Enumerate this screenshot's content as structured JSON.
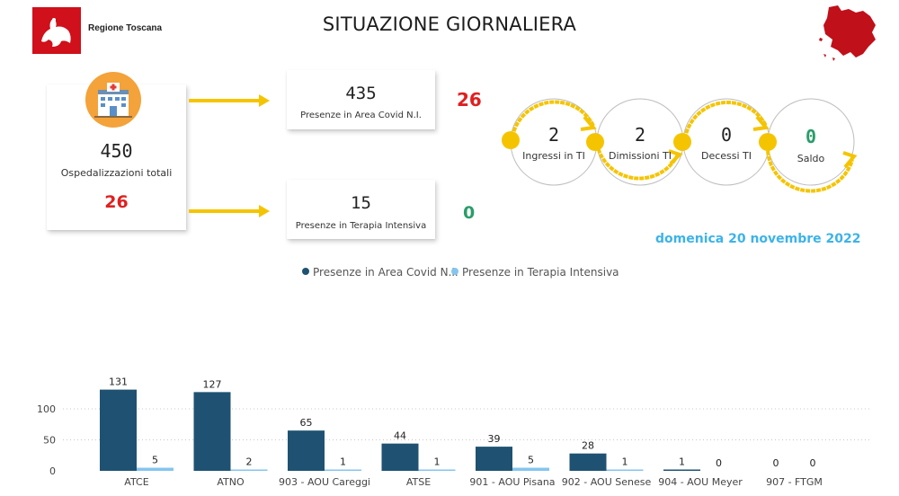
{
  "header": {
    "region_name": "Regione Toscana",
    "title": "SITUAZIONE GIORNALIERA"
  },
  "colors": {
    "brand_red": "#d0101a",
    "arrow_yellow": "#f5c400",
    "covid_bar": "#1f5272",
    "ti_bar": "#84c5ef",
    "delta_up": "#e02020",
    "delta_zero": "#2a9d6a",
    "date_blue": "#3db3e8"
  },
  "kpi": {
    "total": {
      "value": "450",
      "label": "Ospedalizzazioni totali",
      "delta": "26"
    },
    "covid": {
      "value": "435",
      "label": "Presenze in Area Covid N.I.",
      "delta": "26"
    },
    "ti": {
      "value": "15",
      "label": "Presenze in Terapia Intensiva",
      "delta": "0"
    }
  },
  "flow": [
    {
      "value": "2",
      "label": "Ingressi in TI"
    },
    {
      "value": "2",
      "label": "Dimissioni TI"
    },
    {
      "value": "0",
      "label": "Decessi TI"
    },
    {
      "value": "0",
      "label": "Saldo"
    }
  ],
  "date": "domenica 20 novembre 2022",
  "icons": [
    "hospital-icon",
    "tuscany-map-icon",
    "regione-toscana-logo"
  ],
  "chart_data": {
    "type": "bar",
    "categories": [
      "ATCE",
      "ATNO",
      "903 - AOU Careggi",
      "ATSE",
      "901 - AOU Pisana",
      "902 - AOU Senese",
      "904 - AOU Meyer",
      "907 - FTGM"
    ],
    "series": [
      {
        "name": "Presenze in Area Covid N.I.",
        "values": [
          131,
          127,
          65,
          44,
          39,
          28,
          1,
          0
        ]
      },
      {
        "name": "Presenze in Terapia Intensiva",
        "values": [
          5,
          2,
          1,
          1,
          5,
          1,
          0,
          0
        ]
      }
    ],
    "yticks": [
      "0",
      "50",
      "100"
    ],
    "ylim": [
      0,
      140
    ],
    "grid": true,
    "legend": "top-center"
  }
}
